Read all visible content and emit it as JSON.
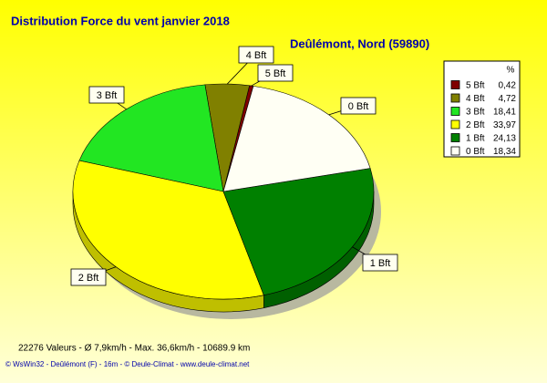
{
  "chart_data": {
    "type": "pie",
    "title": "Distribution Force du vent  janvier 2018",
    "subtitle": "Deûlémont, Nord (59890)",
    "legend_title": "%",
    "categories": [
      "5 Bft",
      "4 Bft",
      "3 Bft",
      "2 Bft",
      "1 Bft",
      "0 Bft"
    ],
    "values": [
      0.42,
      4.72,
      18.41,
      33.97,
      24.13,
      18.34
    ],
    "value_labels": [
      "0,42",
      "4,72",
      "18,41",
      "33,97",
      "24,13",
      "18,34"
    ],
    "colors": [
      "#800000",
      "#808000",
      "#22e622",
      "#ffff00",
      "#008000",
      "#fffff4"
    ],
    "annotations": [
      "22276 Valeurs   -   Ø 7,9km/h  -  Max. 36,6km/h   -   10689.9 km",
      "© WsWin32  -  Deûlémont (F) - 16m  -  © Deule-Climat - www.deule-climat.net"
    ]
  }
}
